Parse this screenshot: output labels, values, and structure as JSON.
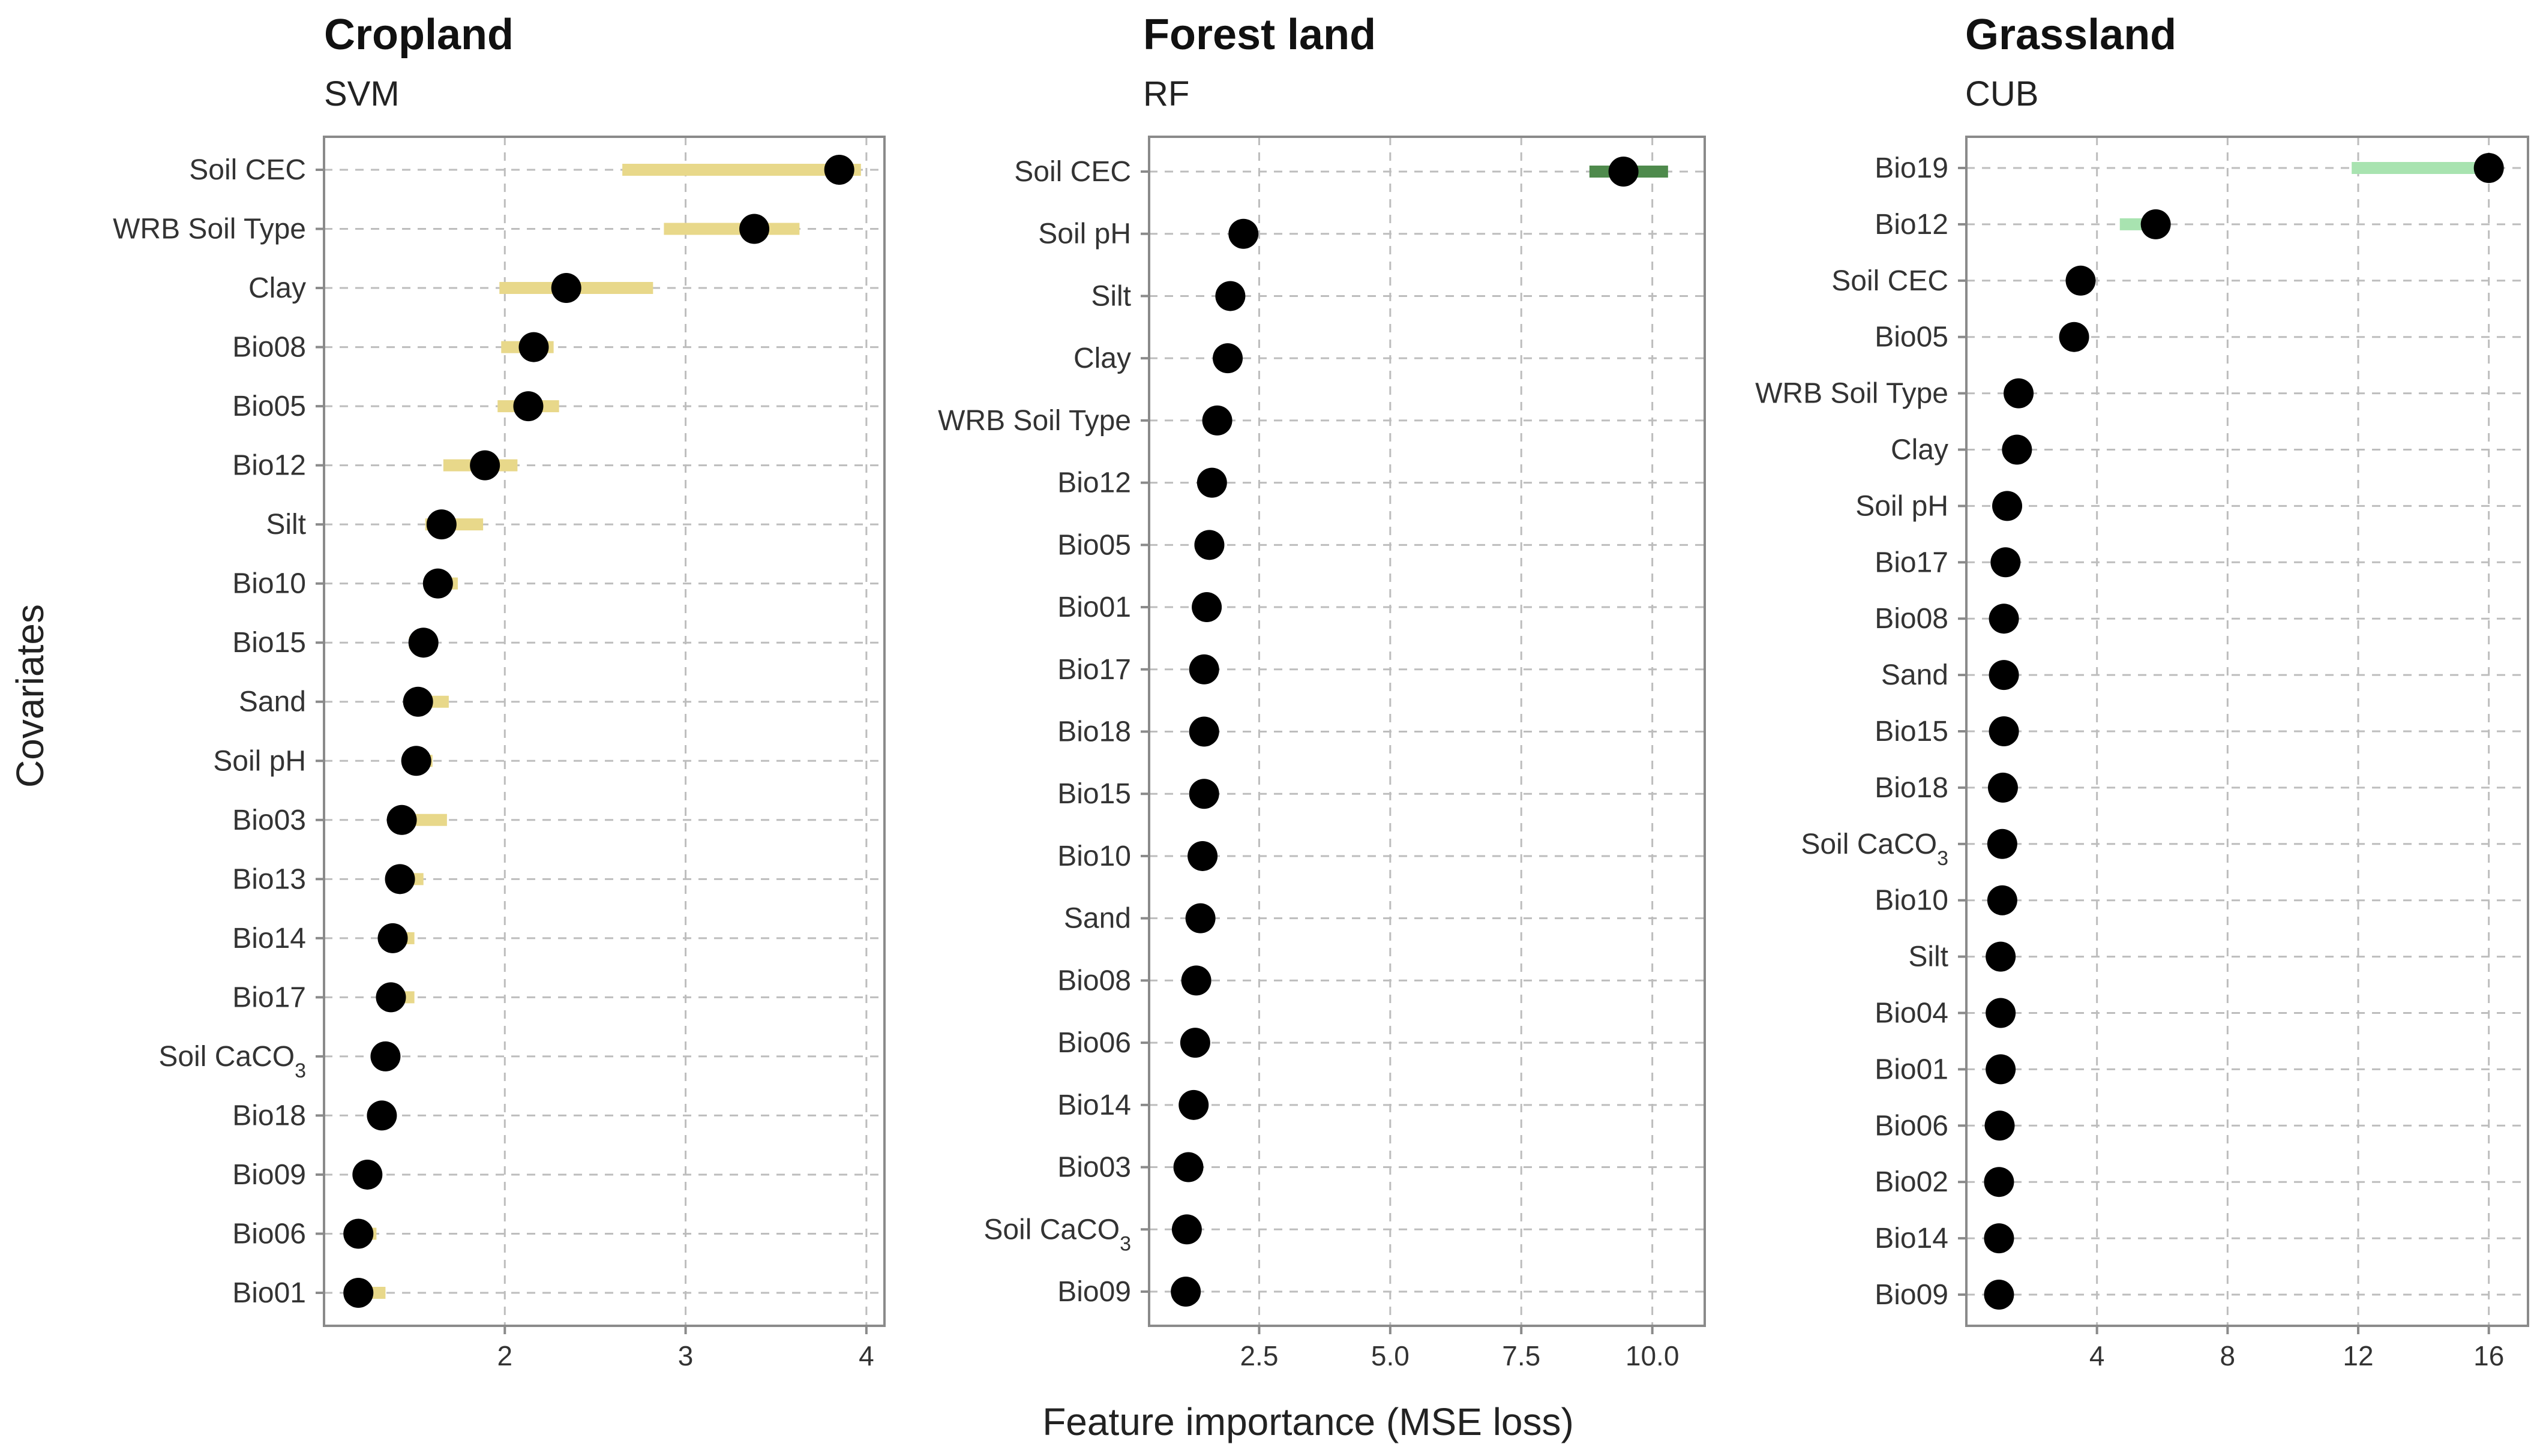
{
  "x_axis_title": "Feature importance (MSE loss)",
  "y_axis_title": "Covariates",
  "chart_data": [
    {
      "type": "scatter",
      "title": "Cropland",
      "subtitle": "SVM",
      "bar_color": "#e8d88a",
      "xlim": [
        1.0,
        4.1
      ],
      "xticks": [
        2,
        3,
        4
      ],
      "categories": [
        "Soil CEC",
        "WRB Soil Type",
        "Clay",
        "Bio08",
        "Bio05",
        "Bio12",
        "Silt",
        "Bio10",
        "Bio15",
        "Sand",
        "Soil pH",
        "Bio03",
        "Bio13",
        "Bio14",
        "Bio17",
        "Soil CaCO3",
        "Bio18",
        "Bio09",
        "Bio06",
        "Bio01"
      ],
      "values": [
        3.85,
        3.38,
        2.34,
        2.16,
        2.13,
        1.89,
        1.65,
        1.63,
        1.55,
        1.52,
        1.51,
        1.43,
        1.42,
        1.38,
        1.37,
        1.34,
        1.32,
        1.24,
        1.19,
        1.19
      ],
      "lower": [
        2.65,
        2.88,
        1.97,
        1.98,
        1.96,
        1.66,
        1.56,
        1.56,
        1.47,
        1.46,
        1.46,
        1.43,
        1.38,
        1.35,
        1.33,
        1.3,
        1.28,
        1.22,
        1.18,
        1.18
      ],
      "upper": [
        3.97,
        3.63,
        2.82,
        2.27,
        2.3,
        2.07,
        1.88,
        1.74,
        1.6,
        1.69,
        1.6,
        1.68,
        1.55,
        1.5,
        1.5,
        1.4,
        1.38,
        1.3,
        1.29,
        1.34
      ]
    },
    {
      "type": "scatter",
      "title": "Forest land",
      "subtitle": "RF",
      "bar_color": "#4e8a4c",
      "xlim": [
        0.4,
        11.0
      ],
      "xticks": [
        2.5,
        5.0,
        7.5,
        10.0
      ],
      "tick_labels": [
        "2.5",
        "5.0",
        "7.5",
        "10.0"
      ],
      "categories": [
        "Soil CEC",
        "Soil pH",
        "Silt",
        "Clay",
        "WRB Soil Type",
        "Bio12",
        "Bio05",
        "Bio01",
        "Bio17",
        "Bio18",
        "Bio15",
        "Bio10",
        "Sand",
        "Bio08",
        "Bio06",
        "Bio14",
        "Bio03",
        "Soil CaCO3",
        "Bio09"
      ],
      "values": [
        9.45,
        2.2,
        1.95,
        1.9,
        1.7,
        1.6,
        1.55,
        1.5,
        1.45,
        1.45,
        1.45,
        1.42,
        1.38,
        1.3,
        1.28,
        1.25,
        1.15,
        1.12,
        1.1
      ],
      "lower": [
        8.8,
        2.2,
        1.95,
        1.9,
        1.7,
        1.6,
        1.55,
        1.5,
        1.45,
        1.45,
        1.45,
        1.42,
        1.38,
        1.3,
        1.28,
        1.25,
        1.15,
        1.12,
        1.1
      ],
      "upper": [
        10.3,
        2.2,
        1.95,
        1.9,
        1.7,
        1.6,
        1.55,
        1.5,
        1.45,
        1.45,
        1.45,
        1.42,
        1.38,
        1.3,
        1.28,
        1.25,
        1.15,
        1.12,
        1.1
      ]
    },
    {
      "type": "scatter",
      "title": "Grassland",
      "subtitle": "CUB",
      "bar_color": "#a8e3b0",
      "xlim": [
        0.0,
        17.2
      ],
      "xticks": [
        4,
        8,
        12,
        16
      ],
      "categories": [
        "Bio19",
        "Bio12",
        "Soil CEC",
        "Bio05",
        "WRB Soil Type",
        "Clay",
        "Soil pH",
        "Bio17",
        "Bio08",
        "Sand",
        "Bio15",
        "Bio18",
        "Soil CaCO3",
        "Bio10",
        "Silt",
        "Bio04",
        "Bio01",
        "Bio06",
        "Bio02",
        "Bio14",
        "Bio09"
      ],
      "values": [
        16.0,
        5.8,
        3.5,
        3.3,
        1.6,
        1.55,
        1.25,
        1.2,
        1.15,
        1.15,
        1.15,
        1.12,
        1.1,
        1.1,
        1.05,
        1.05,
        1.05,
        1.02,
        1.0,
        1.0,
        1.0
      ],
      "lower": [
        11.8,
        4.7,
        3.5,
        3.3,
        1.6,
        1.55,
        1.25,
        1.2,
        1.15,
        1.15,
        1.15,
        1.12,
        1.1,
        1.1,
        1.05,
        1.05,
        1.05,
        1.02,
        1.0,
        1.0,
        1.0
      ],
      "upper": [
        16.0,
        5.8,
        3.5,
        3.3,
        1.6,
        1.55,
        1.25,
        1.2,
        1.15,
        1.15,
        1.15,
        1.12,
        1.1,
        1.1,
        1.05,
        1.05,
        1.05,
        1.02,
        1.0,
        1.0,
        1.0
      ]
    }
  ]
}
